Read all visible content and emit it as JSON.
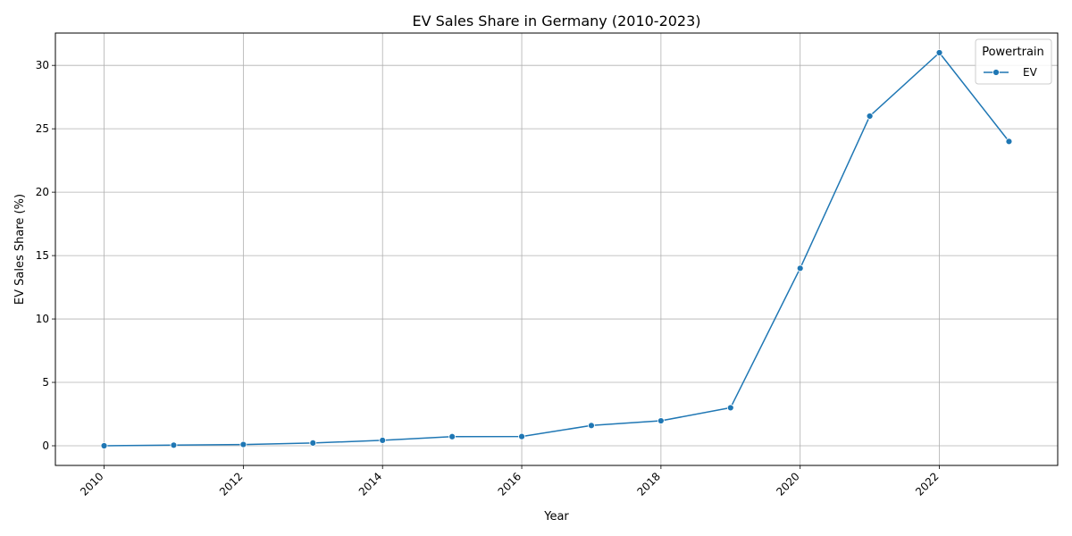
{
  "chart_data": {
    "type": "line",
    "title": "EV Sales Share in Germany (2010-2023)",
    "xlabel": "Year",
    "ylabel": "EV Sales Share (%)",
    "xlim": [
      2009.3,
      2023.7
    ],
    "ylim": [
      -1.55,
      32.55
    ],
    "xticks": [
      2010,
      2012,
      2014,
      2016,
      2018,
      2020,
      2022
    ],
    "yticks": [
      0,
      5,
      10,
      15,
      20,
      25,
      30
    ],
    "grid": true,
    "legend": {
      "title": "Powertrain",
      "placement": "top-right"
    },
    "colors": {
      "series": "#1f77b4",
      "grid": "#b0b0b0",
      "axis": "#000000"
    },
    "series": [
      {
        "name": "EV",
        "x": [
          2010,
          2011,
          2012,
          2013,
          2014,
          2015,
          2016,
          2017,
          2018,
          2019,
          2020,
          2021,
          2022,
          2023
        ],
        "y": [
          0.0,
          0.05,
          0.1,
          0.22,
          0.43,
          0.72,
          0.73,
          1.6,
          1.97,
          3.0,
          14.0,
          26.0,
          31.0,
          24.0
        ]
      }
    ]
  }
}
